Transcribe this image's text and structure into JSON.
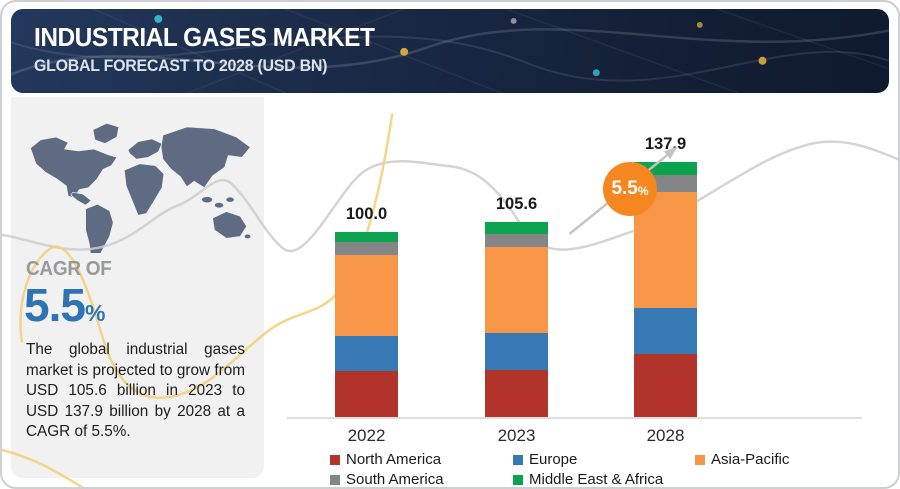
{
  "header": {
    "title": "INDUSTRIAL GASES MARKET",
    "subtitle": "GLOBAL FORECAST TO 2028 (USD BN)"
  },
  "sidebar": {
    "cagr_label": "CAGR OF",
    "cagr_value": "5.5",
    "cagr_unit": "%",
    "description": "The global industrial gases market is projected to grow from USD 105.6 billion in 2023 to USD 137.9 billion by 2028 at a CAGR of 5.5%."
  },
  "growth_badge": {
    "value": "5.5",
    "unit": "%"
  },
  "chart_data": {
    "type": "bar",
    "stacked": true,
    "title": "INDUSTRIAL GASES MARKET — GLOBAL FORECAST TO 2028 (USD BN)",
    "unit": "USD BN",
    "categories": [
      "2022",
      "2023",
      "2028"
    ],
    "totals": [
      100.0,
      105.6,
      137.9
    ],
    "total_labels": [
      "100.0",
      "105.6",
      "137.9"
    ],
    "series": [
      {
        "name": "North America",
        "color": "#b23329",
        "values": [
          25.0,
          25.5,
          34.0
        ]
      },
      {
        "name": "Europe",
        "color": "#3779b5",
        "values": [
          19.0,
          20.0,
          25.0
        ]
      },
      {
        "name": "Asia-Pacific",
        "color": "#f79646",
        "values": [
          43.5,
          46.6,
          62.5
        ]
      },
      {
        "name": "South America",
        "color": "#838587",
        "values": [
          7.0,
          7.0,
          9.3
        ]
      },
      {
        "name": "Middle East & Africa",
        "color": "#0ba34d",
        "values": [
          5.5,
          6.5,
          7.1
        ]
      }
    ],
    "cagr_annotation": "5.5%",
    "legend_position": "bottom",
    "grid": false,
    "ylim": [
      0,
      150
    ]
  },
  "colors": {
    "header_navy": "#17263f",
    "panel_gray": "#f1f1f2",
    "map_slate": "#5e6b82",
    "cagr_blue": "#2e74b5",
    "badge_orange": "#f6861f",
    "wave_yellow": "#f3d07c",
    "wave_gray": "#cccccc",
    "axis_gray": "#dedede"
  }
}
